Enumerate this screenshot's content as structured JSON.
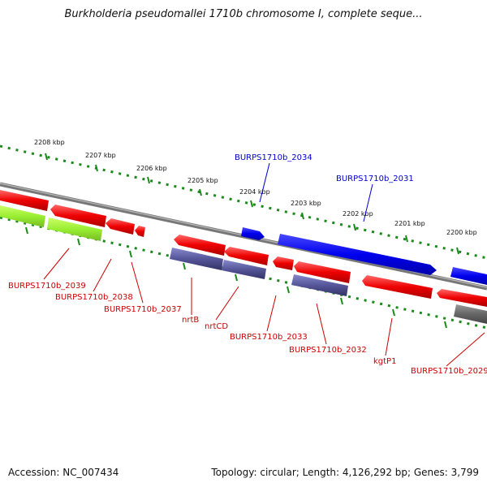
{
  "title": "Burkholderia pseudomallei 1710b chromosome I, complete seque...",
  "footer": {
    "accession": "Accession: NC_007434",
    "topology": "Topology: circular; Length: 4,126,292 bp; Genes: 3,799"
  },
  "colors": {
    "backbone": "#8a8a8a",
    "scale_dots": "#1b8a1b",
    "forward_gene": "#0000ee",
    "reverse_gene": "#ee0000",
    "rna_gene": "#99ee33",
    "other_gene": "#555599",
    "pseudo_gene": "#666666",
    "label_forward": "#0000cc",
    "label_reverse": "#cc0000"
  },
  "scale_labels": [
    "2208 kbp",
    "2207 kbp",
    "2206 kbp",
    "2205 kbp",
    "2204 kbp",
    "2203 kbp",
    "2202 kbp",
    "2201 kbp",
    "2200 kbp"
  ],
  "forward_labels": [
    "BURPS1710b_2034",
    "BURPS1710b_2031"
  ],
  "reverse_labels": [
    "BURPS1710b_2039",
    "BURPS1710b_2038",
    "BURPS1710b_2037",
    "nrtB",
    "nrtCD",
    "BURPS1710b_2033",
    "BURPS1710b_2032",
    "kgtP1",
    "BURPS1710b_2029"
  ]
}
